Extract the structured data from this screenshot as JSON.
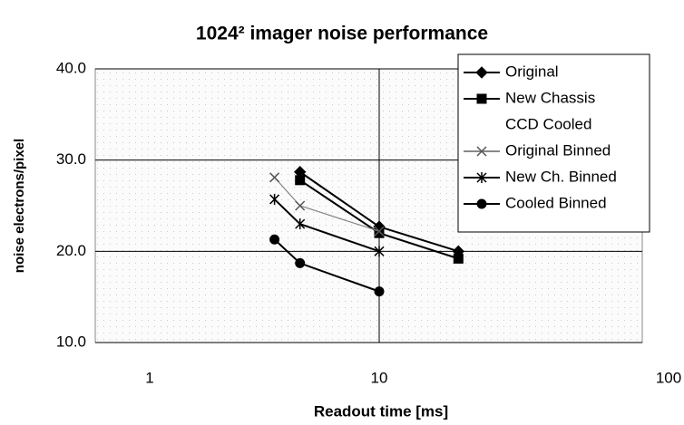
{
  "chart_data": {
    "type": "line",
    "title": "1024² imager noise performance",
    "x_label": "Readout time [ms]",
    "y_label": "noise electrons/pixel",
    "xscale": "log",
    "xlim": [
      1,
      100
    ],
    "xticks": [
      1,
      10,
      100
    ],
    "ylim": [
      10,
      40
    ],
    "yticks": [
      {
        "value": 10,
        "label": "10.0"
      },
      {
        "value": 20,
        "label": "20.0"
      },
      {
        "value": 30,
        "label": "30.0"
      },
      {
        "value": 40,
        "label": "40.0"
      }
    ],
    "grid": true,
    "legend": "upper right",
    "series": [
      {
        "name": "Original",
        "color": "#000000",
        "marker": "diamond",
        "x": [
          5,
          10,
          20
        ],
        "values": [
          28.7,
          22.7,
          20.0
        ]
      },
      {
        "name": "New Chassis",
        "color": "#000000",
        "marker": "square",
        "x": [
          5,
          10,
          20
        ],
        "values": [
          27.8,
          22.0,
          19.2
        ]
      },
      {
        "name": "CCD Cooled",
        "color": "#ffffff",
        "marker": "none",
        "x": [],
        "values": []
      },
      {
        "name": "Original Binned",
        "color": "#888888",
        "marker": "x",
        "x": [
          4,
          5,
          10
        ],
        "values": [
          28.1,
          25.0,
          22.2
        ]
      },
      {
        "name": "New Ch. Binned",
        "color": "#000000",
        "marker": "asterisk",
        "x": [
          4,
          5,
          10
        ],
        "values": [
          25.7,
          23.0,
          20.0
        ]
      },
      {
        "name": "Cooled Binned",
        "color": "#000000",
        "marker": "circle",
        "x": [
          4,
          5,
          10
        ],
        "values": [
          21.3,
          18.7,
          15.6
        ]
      }
    ]
  }
}
